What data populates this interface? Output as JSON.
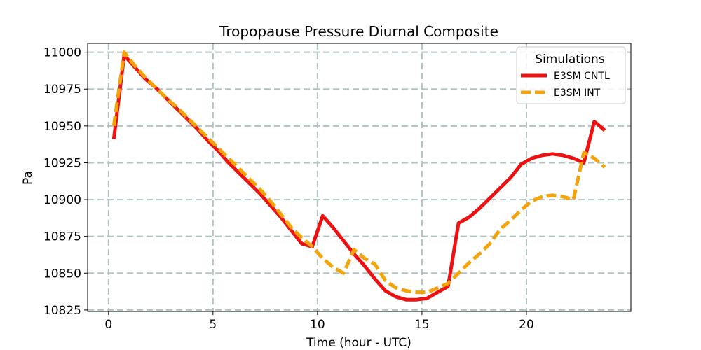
{
  "chart_data": {
    "type": "line",
    "title": "Tropopause Pressure Diurnal Composite",
    "xlabel": "Time (hour - UTC)",
    "ylabel": "Pa",
    "xlim": [
      -1,
      25
    ],
    "ylim": [
      10824,
      11006
    ],
    "xticks": [
      0,
      5,
      10,
      15,
      20
    ],
    "yticks": [
      10825,
      10850,
      10875,
      10900,
      10925,
      10950,
      10975,
      11000
    ],
    "grid": true,
    "legend": {
      "title": "Simulations",
      "placement": "top-right"
    },
    "series": [
      {
        "name": "E3SM CNTL",
        "color": "#ee1111",
        "style": "solid",
        "x": [
          0.25,
          0.75,
          1.25,
          1.75,
          2.25,
          2.75,
          3.25,
          3.75,
          4.25,
          4.75,
          5.25,
          5.75,
          6.25,
          6.75,
          7.25,
          7.75,
          8.25,
          8.75,
          9.25,
          9.75,
          10.25,
          10.75,
          11.25,
          11.75,
          12.25,
          12.75,
          13.25,
          13.75,
          14.25,
          14.75,
          15.25,
          15.75,
          16.25,
          16.75,
          17.25,
          17.75,
          18.25,
          18.75,
          19.25,
          19.75,
          20.25,
          20.75,
          21.25,
          21.75,
          22.25,
          22.75,
          23.25,
          23.75
        ],
        "values": [
          10941,
          10998,
          10990,
          10982,
          10976,
          10969,
          10962,
          10955,
          10948,
          10940,
          10933,
          10925,
          10918,
          10911,
          10904,
          10896,
          10888,
          10879,
          10870,
          10868,
          10889,
          10881,
          10872,
          10863,
          10855,
          10846,
          10838,
          10834,
          10832,
          10832,
          10833,
          10837,
          10841,
          10884,
          10888,
          10894,
          10901,
          10908,
          10915,
          10924,
          10928,
          10930,
          10931,
          10930,
          10928,
          10925,
          10953,
          10947
        ],
        "x_note": "",
        "_comment": ""
      },
      {
        "name": "E3SM INT",
        "color": "#f5a30a",
        "style": "dashed",
        "x": [
          0.25,
          0.75,
          1.25,
          1.75,
          2.25,
          2.75,
          3.25,
          3.75,
          4.25,
          4.75,
          5.25,
          5.75,
          6.25,
          6.75,
          7.25,
          7.75,
          8.25,
          8.75,
          9.25,
          9.75,
          10.25,
          10.75,
          11.25,
          11.75,
          12.25,
          12.75,
          13.25,
          13.75,
          14.25,
          14.75,
          15.25,
          15.75,
          16.25,
          16.75,
          17.25,
          17.75,
          18.25,
          18.75,
          19.25,
          19.75,
          20.25,
          20.75,
          21.25,
          21.75,
          22.25,
          22.75,
          23.25,
          23.75
        ],
        "values": [
          10950,
          11000,
          10991,
          10983,
          10976,
          10969,
          10963,
          10956,
          10949,
          10942,
          10935,
          10928,
          10921,
          10914,
          10907,
          10899,
          10890,
          10881,
          10874,
          10868,
          10860,
          10854,
          10850,
          10866,
          10860,
          10856,
          10845,
          10840,
          10838,
          10837,
          10837,
          10840,
          10843,
          10850,
          10857,
          10863,
          10870,
          10880,
          10886,
          10893,
          10899,
          10902,
          10903,
          10902,
          10900,
          10932,
          10928,
          10922
        ],
        "x_note": "",
        "_comment": ""
      }
    ]
  }
}
